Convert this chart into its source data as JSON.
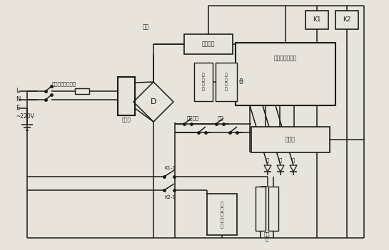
{
  "bg_color": "#e8e4dc",
  "line_color": "#1a1a1a",
  "labels": {
    "power_switch": "电源开关、熔断器",
    "transformer": "变压器",
    "rectifier": "整流",
    "filter": "稳压电路",
    "current_indicator": "电\n流\n指\n示",
    "thermal_resistor": "热\n敏\n电\n阻",
    "micro_control": "微电脑控制主板",
    "button_panel": "按键板",
    "sterilize": "消毒保温",
    "ozone_label": "臭氧",
    "ozone_gen": "臭\n氧\n发\n生\n器",
    "heater": "发热\n管",
    "K1": "K1",
    "K2": "K2",
    "K1_1": "K1-1",
    "K2_1": "K2-1",
    "L": "L",
    "N": "N",
    "E": "E",
    "voltage": "~220V",
    "red": "红",
    "yellow": "黄",
    "green": "绿",
    "theta": "θ"
  }
}
